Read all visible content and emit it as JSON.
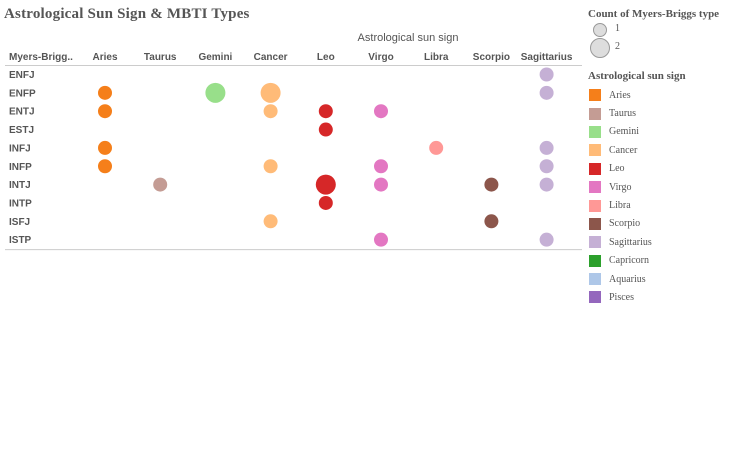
{
  "title": "Astrological Sun Sign & MBTI Types",
  "chart_data": {
    "type": "scatter",
    "title": "Astrological Sun Sign & MBTI Types",
    "column_header": "Astrological sun sign",
    "row_header": "Myers-Brigg..",
    "columns": [
      "Aries",
      "Taurus",
      "Gemini",
      "Cancer",
      "Leo",
      "Virgo",
      "Libra",
      "Scorpio",
      "Sagittarius"
    ],
    "rows": [
      "ENFJ",
      "ENFP",
      "ENTJ",
      "ESTJ",
      "INFJ",
      "INFP",
      "INTJ",
      "INTP",
      "ISFJ",
      "ISTP"
    ],
    "points": [
      {
        "mbti": "ENFJ",
        "sign": "Sagittarius",
        "count": 1
      },
      {
        "mbti": "ENFP",
        "sign": "Aries",
        "count": 1
      },
      {
        "mbti": "ENFP",
        "sign": "Gemini",
        "count": 2
      },
      {
        "mbti": "ENFP",
        "sign": "Cancer",
        "count": 2
      },
      {
        "mbti": "ENFP",
        "sign": "Sagittarius",
        "count": 1
      },
      {
        "mbti": "ENTJ",
        "sign": "Aries",
        "count": 1
      },
      {
        "mbti": "ENTJ",
        "sign": "Cancer",
        "count": 1
      },
      {
        "mbti": "ENTJ",
        "sign": "Leo",
        "count": 1
      },
      {
        "mbti": "ENTJ",
        "sign": "Virgo",
        "count": 1
      },
      {
        "mbti": "ESTJ",
        "sign": "Leo",
        "count": 1
      },
      {
        "mbti": "INFJ",
        "sign": "Aries",
        "count": 1
      },
      {
        "mbti": "INFJ",
        "sign": "Libra",
        "count": 1
      },
      {
        "mbti": "INFJ",
        "sign": "Sagittarius",
        "count": 1
      },
      {
        "mbti": "INFP",
        "sign": "Aries",
        "count": 1
      },
      {
        "mbti": "INFP",
        "sign": "Cancer",
        "count": 1
      },
      {
        "mbti": "INFP",
        "sign": "Virgo",
        "count": 1
      },
      {
        "mbti": "INFP",
        "sign": "Sagittarius",
        "count": 1
      },
      {
        "mbti": "INTJ",
        "sign": "Taurus",
        "count": 1
      },
      {
        "mbti": "INTJ",
        "sign": "Leo",
        "count": 2
      },
      {
        "mbti": "INTJ",
        "sign": "Virgo",
        "count": 1
      },
      {
        "mbti": "INTJ",
        "sign": "Scorpio",
        "count": 1
      },
      {
        "mbti": "INTJ",
        "sign": "Sagittarius",
        "count": 1
      },
      {
        "mbti": "INTP",
        "sign": "Leo",
        "count": 1
      },
      {
        "mbti": "ISFJ",
        "sign": "Cancer",
        "count": 1
      },
      {
        "mbti": "ISFJ",
        "sign": "Scorpio",
        "count": 1
      },
      {
        "mbti": "ISTP",
        "sign": "Virgo",
        "count": 1
      },
      {
        "mbti": "ISTP",
        "sign": "Sagittarius",
        "count": 1
      }
    ]
  },
  "legend": {
    "size_title": "Count of Myers-Briggs type",
    "sizes": [
      {
        "label": "1",
        "value": 1
      },
      {
        "label": "2",
        "value": 2
      }
    ],
    "color_title": "Astrological sun sign",
    "colors": [
      {
        "label": "Aries",
        "color": "#f57f1a"
      },
      {
        "label": "Taurus",
        "color": "#c49c94"
      },
      {
        "label": "Gemini",
        "color": "#98df8a"
      },
      {
        "label": "Cancer",
        "color": "#ffbb78"
      },
      {
        "label": "Leo",
        "color": "#d62728"
      },
      {
        "label": "Virgo",
        "color": "#e377c2"
      },
      {
        "label": "Libra",
        "color": "#ff9896"
      },
      {
        "label": "Scorpio",
        "color": "#8c564b"
      },
      {
        "label": "Sagittarius",
        "color": "#c5b0d5"
      },
      {
        "label": "Capricorn",
        "color": "#2ca02c"
      },
      {
        "label": "Aquarius",
        "color": "#aec7e8"
      },
      {
        "label": "Pisces",
        "color": "#9467bd"
      }
    ]
  }
}
